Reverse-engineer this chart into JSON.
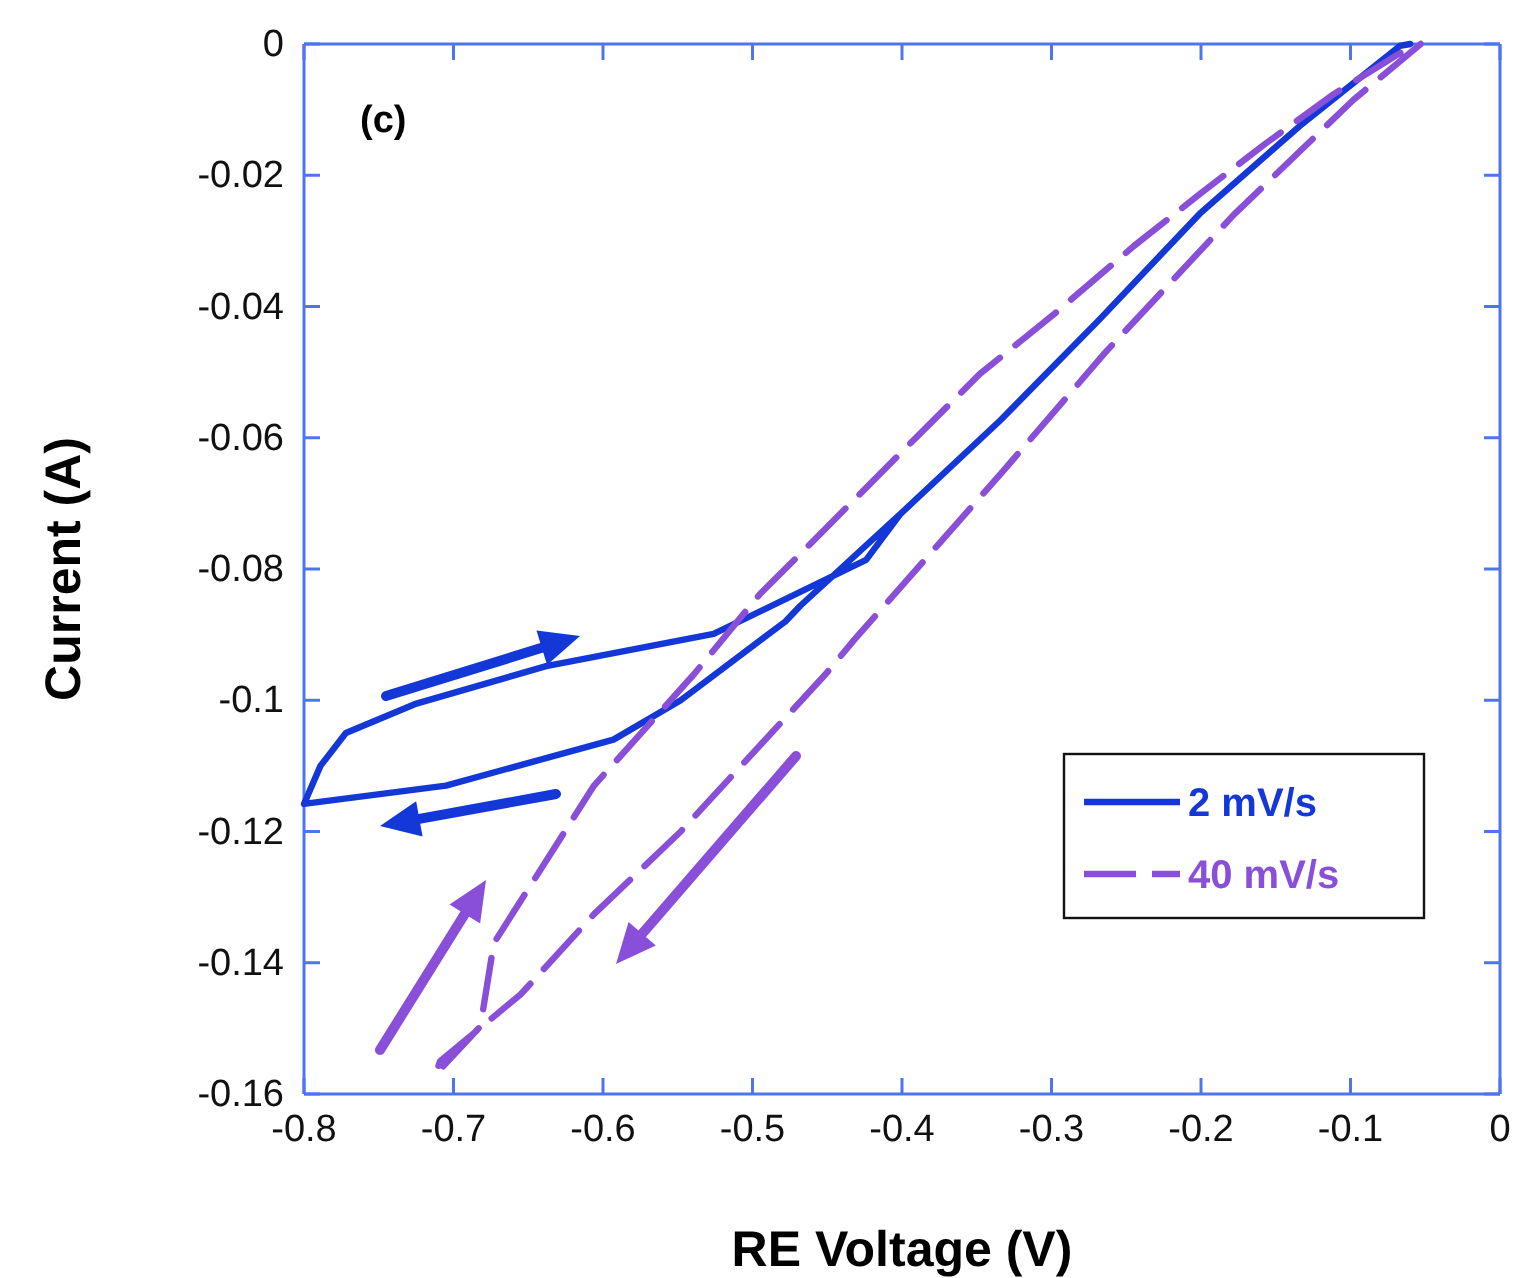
{
  "chart_data": {
    "type": "line",
    "xlabel": "RE Voltage (V)",
    "ylabel": "Current (A)",
    "annotations": [
      "(c)"
    ],
    "xlim": [
      -0.8,
      0
    ],
    "xticks": [
      -0.8,
      -0.7,
      -0.6,
      -0.5,
      -0.4,
      -0.3,
      -0.2,
      -0.1,
      0
    ],
    "ylim": [
      -0.16,
      0
    ],
    "yticks": [
      -0.16,
      -0.14,
      -0.12,
      -0.1,
      -0.08,
      -0.06,
      -0.04,
      -0.02,
      0
    ],
    "legend": "bottom right",
    "grid": false,
    "series": [
      {
        "name": "2 mV/s",
        "color": "#1438d8",
        "line_style": "solid",
        "x": [
          -0.06,
          -0.067,
          -0.134,
          -0.201,
          -0.268,
          -0.334,
          -0.401,
          -0.468,
          -0.478,
          -0.548,
          -0.593,
          -0.705,
          -0.8,
          -0.789,
          -0.772,
          -0.726,
          -0.638,
          -0.526,
          -0.424,
          -0.401
        ],
        "values": [
          0,
          -0.0003,
          -0.0125,
          -0.0259,
          -0.042,
          -0.0573,
          -0.0716,
          -0.0856,
          -0.088,
          -0.1,
          -0.106,
          -0.113,
          -0.1158,
          -0.11,
          -0.105,
          -0.1006,
          -0.0948,
          -0.0899,
          -0.0786,
          -0.0716
        ]
      },
      {
        "name": "40 mV/s",
        "color": "#8a4fd8",
        "line_style": "dashed",
        "x": [
          -0.053,
          -0.098,
          -0.178,
          -0.264,
          -0.334,
          -0.432,
          -0.451,
          -0.548,
          -0.606,
          -0.655,
          -0.709,
          -0.712,
          -0.682,
          -0.673,
          -0.606,
          -0.539,
          -0.495,
          -0.468,
          -0.392,
          -0.348,
          -0.298,
          -0.245,
          -0.201,
          -0.157,
          -0.111,
          -0.057
        ],
        "values": [
          0,
          -0.0085,
          -0.026,
          -0.047,
          -0.0655,
          -0.0908,
          -0.096,
          -0.12,
          -0.1326,
          -0.1448,
          -0.155,
          -0.157,
          -0.1497,
          -0.137,
          -0.113,
          -0.096,
          -0.0838,
          -0.0777,
          -0.0603,
          -0.0503,
          -0.0411,
          -0.0308,
          -0.0229,
          -0.0152,
          -0.0076,
          0
        ]
      }
    ]
  }
}
